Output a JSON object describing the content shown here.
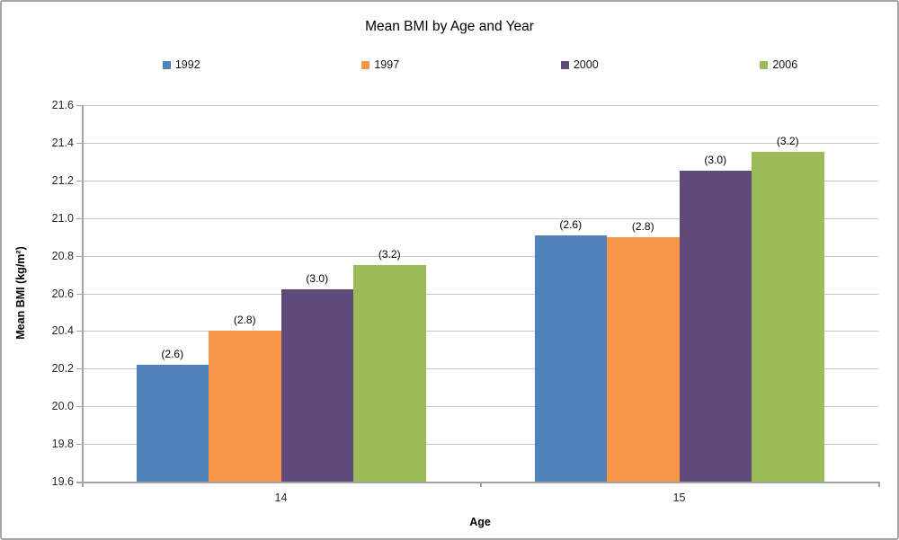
{
  "chart_data": {
    "type": "bar",
    "title": "Mean BMI by Age and Year",
    "xlabel": "Age",
    "ylabel": "Mean BMI (kg/m²)",
    "categories": [
      "14",
      "15"
    ],
    "series": [
      {
        "name": "1992",
        "color": "#4F81BD",
        "values": [
          20.22,
          20.91
        ],
        "data_label": "(2.6)"
      },
      {
        "name": "1997",
        "color": "#F79646",
        "values": [
          20.4,
          20.9
        ],
        "data_label": "(2.8)"
      },
      {
        "name": "2000",
        "color": "#604A7B",
        "values": [
          20.62,
          21.25
        ],
        "data_label": "(3.0)"
      },
      {
        "name": "2006",
        "color": "#9BBB59",
        "values": [
          20.75,
          21.35
        ],
        "data_label": "(3.2)"
      }
    ],
    "ylim": [
      19.6,
      21.6
    ],
    "ytick_step": 0.2,
    "yticks": [
      "19.6",
      "19.8",
      "20.0",
      "20.2",
      "20.4",
      "20.6",
      "20.8",
      "21.0",
      "21.2",
      "21.4",
      "21.6"
    ],
    "grid": true,
    "legend_position": "top"
  }
}
